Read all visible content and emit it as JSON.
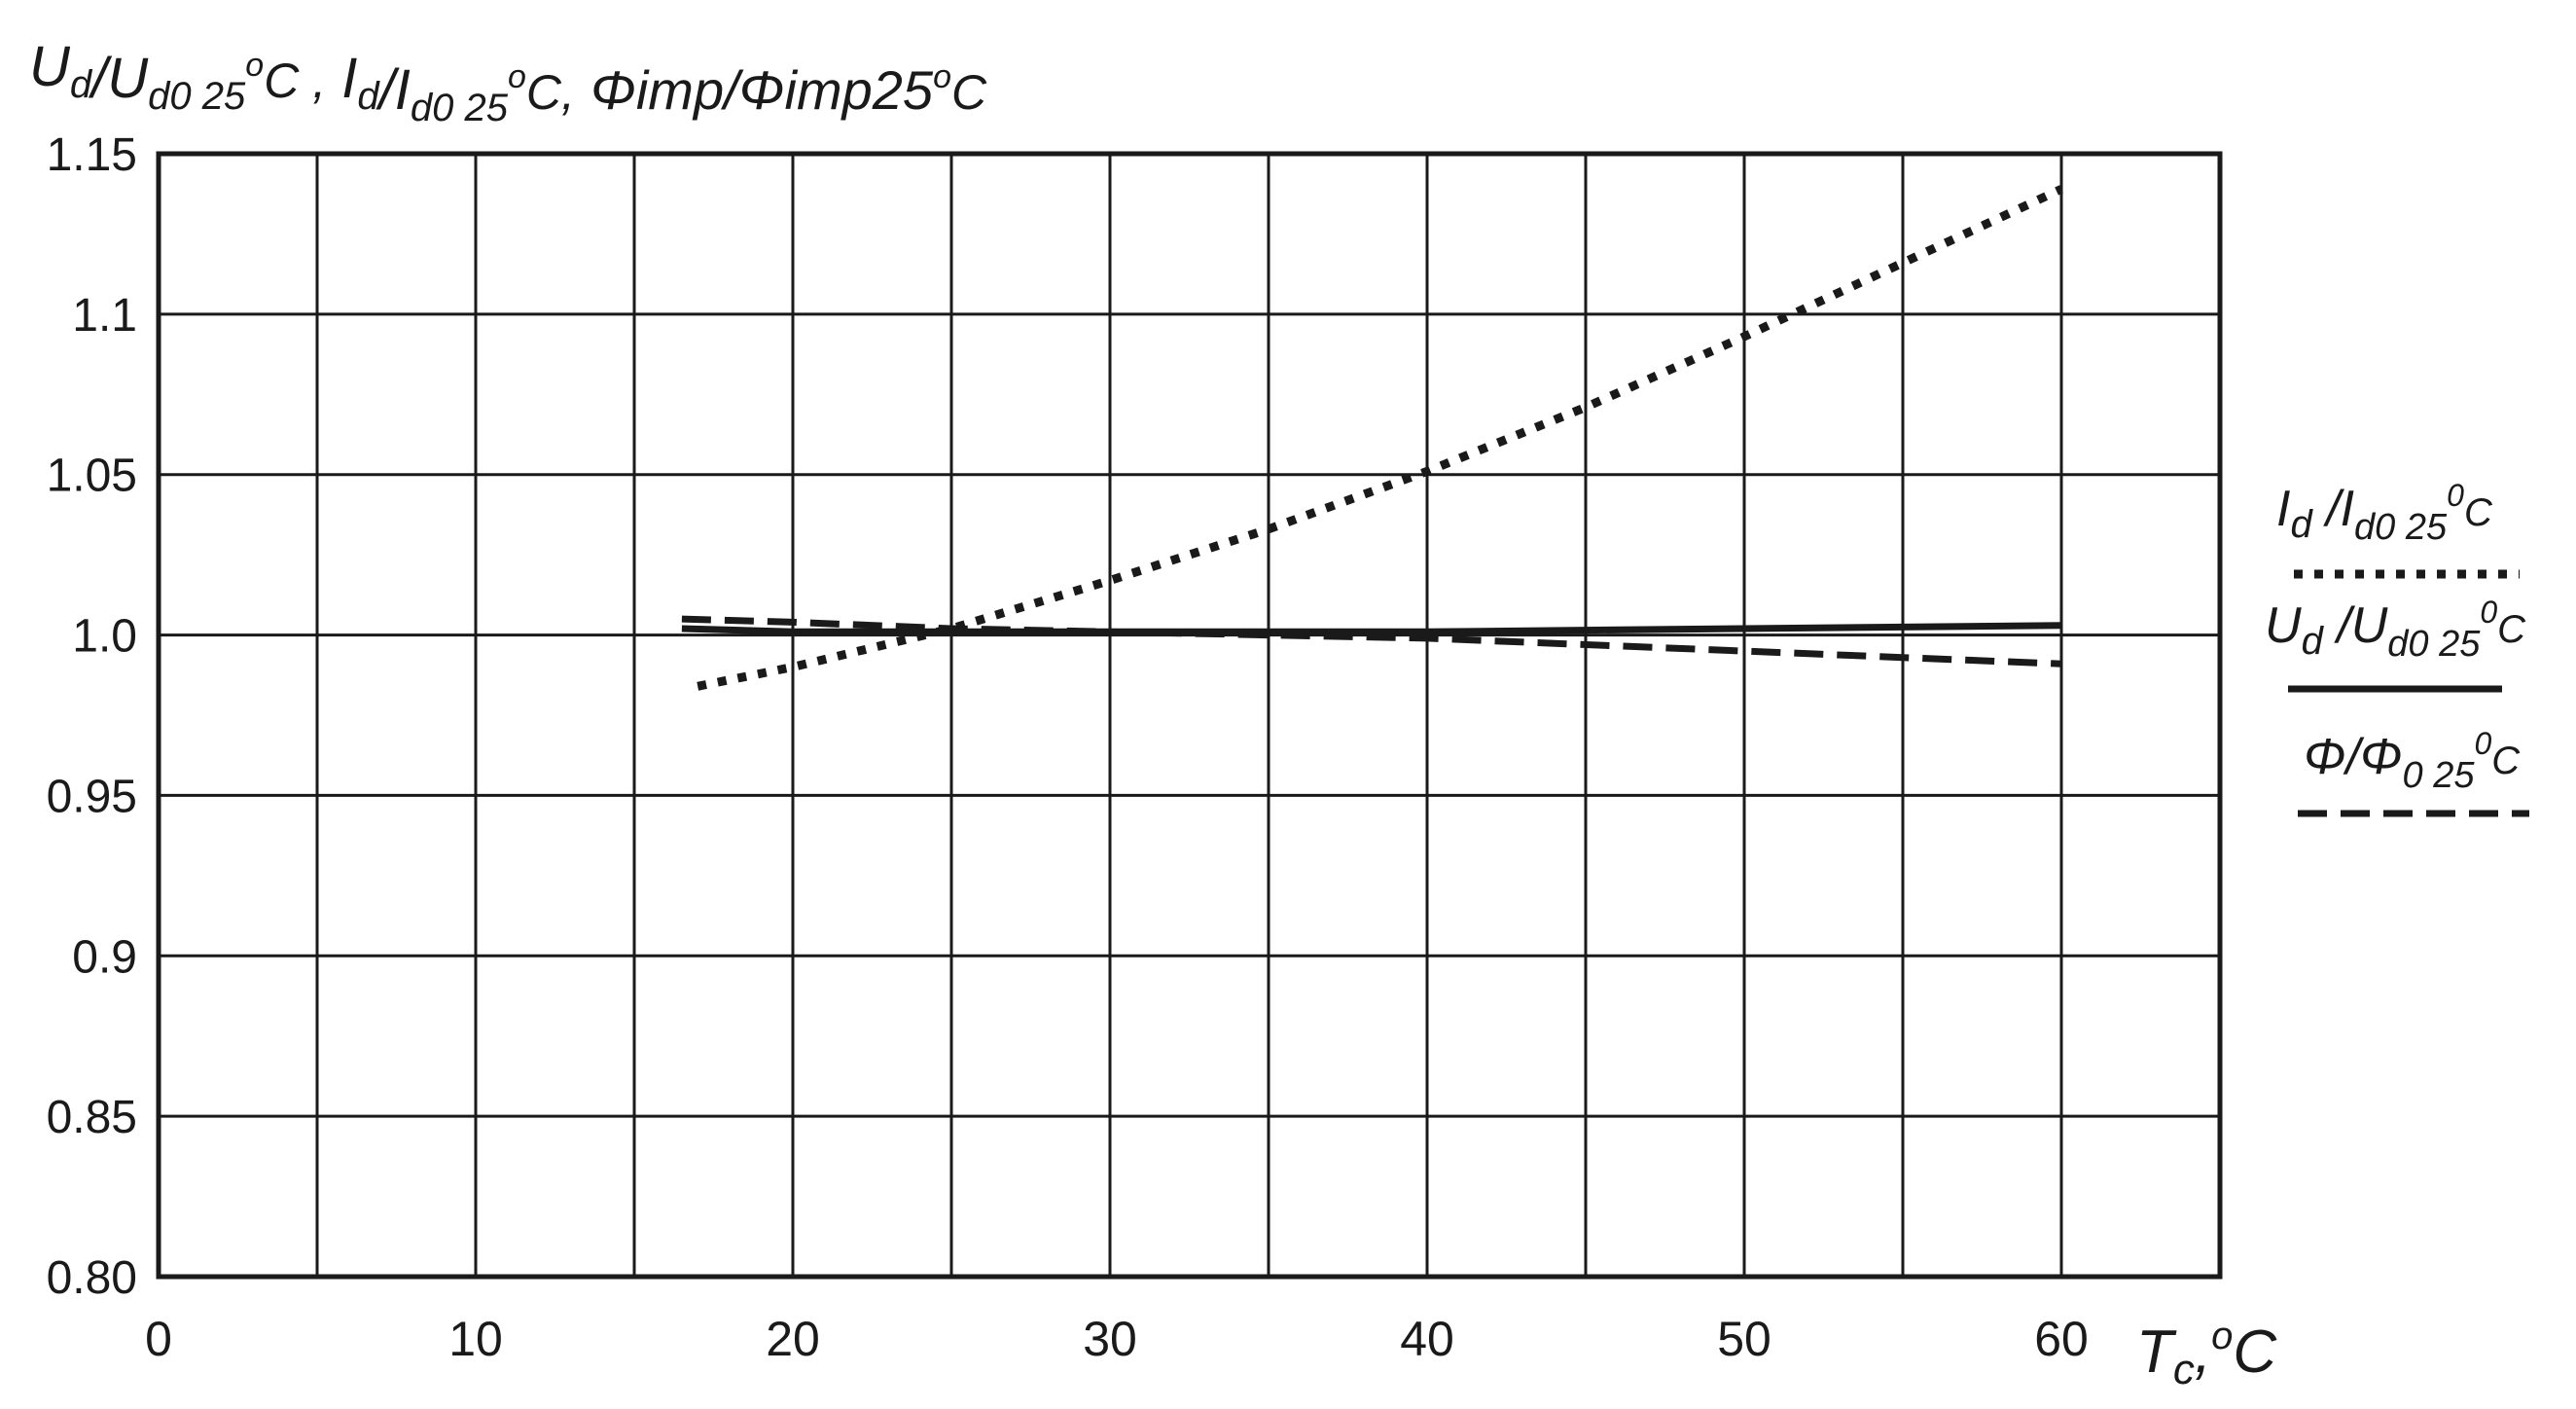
{
  "chart_data": {
    "type": "line",
    "title": {
      "main": "U",
      "parts": [
        {
          "base": "U",
          "sub": "d"
        },
        {
          "text": "/"
        },
        {
          "base": "U",
          "sub": "d0 25",
          "sup": "o",
          "tail": "C ,"
        },
        {
          "base": "I",
          "sub": "d"
        },
        {
          "text": "/"
        },
        {
          "base": "I",
          "sub": "d0 25",
          "sup": "o",
          "tail": "C,"
        },
        {
          "text": "Φimp/Φimp25"
        },
        {
          "sup": "o",
          "tail": "C"
        }
      ]
    },
    "xlabel": {
      "base": "T",
      "sub": "c",
      "sep": ",",
      "sup": "o",
      "tail": "C"
    },
    "xlim": [
      0,
      65
    ],
    "ylim": [
      0.8,
      1.15
    ],
    "x_ticks": [
      0,
      10,
      20,
      30,
      40,
      50,
      60
    ],
    "x_tick_labels": [
      "0",
      "10",
      "20",
      "30",
      "40",
      "50",
      "60"
    ],
    "x_grid": [
      0,
      5,
      10,
      15,
      20,
      25,
      30,
      35,
      40,
      45,
      50,
      55,
      60,
      65
    ],
    "y_ticks": [
      0.8,
      0.85,
      0.9,
      0.95,
      1.0,
      1.05,
      1.1,
      1.15
    ],
    "y_tick_labels": [
      "0.80",
      "0.85",
      "0.9",
      "0.95",
      "1.0",
      "1.05",
      "1.1",
      "1.15"
    ],
    "grid": true,
    "legend_placement": "right",
    "series": [
      {
        "name": "Id/Id0 25°C",
        "label": {
          "base": "I",
          "sub": "d",
          "mid": " /I",
          "sub2": "d0 25",
          "sup": "0",
          "tail": "C"
        },
        "style": "dotted",
        "x": [
          17,
          20,
          25,
          30,
          35,
          40,
          45,
          50,
          55,
          60
        ],
        "y": [
          0.984,
          0.99,
          1.002,
          1.017,
          1.033,
          1.051,
          1.071,
          1.093,
          1.116,
          1.139
        ]
      },
      {
        "name": "Ud/Ud0 25°C",
        "label": {
          "base": "U",
          "sub": "d",
          "mid": " /U",
          "sub2": "d0 25",
          "sup": "0",
          "tail": "C"
        },
        "style": "solid",
        "x": [
          16.5,
          20,
          25,
          30,
          40,
          50,
          60
        ],
        "y": [
          1.002,
          1.001,
          1.001,
          1.001,
          1.001,
          1.002,
          1.003
        ]
      },
      {
        "name": "Φ/Φ0 25°C",
        "label": {
          "base": "Φ",
          "mid": "/Φ",
          "sub2": "0 25",
          "sup": "0",
          "tail": "C"
        },
        "style": "dashed",
        "x": [
          16.5,
          20,
          25,
          30,
          35,
          40,
          45,
          50,
          55,
          60
        ],
        "y": [
          1.005,
          1.004,
          1.002,
          1.001,
          1.0,
          0.999,
          0.997,
          0.995,
          0.993,
          0.991
        ]
      }
    ]
  }
}
